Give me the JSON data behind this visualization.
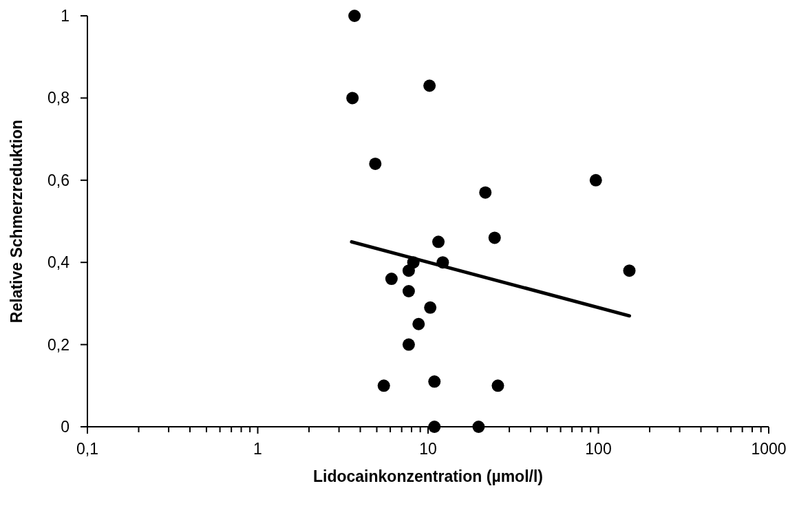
{
  "chart_data": {
    "type": "scatter",
    "xlabel": "Lidocainkonzentration (µmol/l)",
    "ylabel": "Relative Schmerzreduktion",
    "log": "x",
    "marker": "circle",
    "grid": false,
    "xlim": [
      0.1,
      1000
    ],
    "xticks": [
      {
        "value": 0.1,
        "label": "0,1"
      },
      {
        "value": 0.2,
        "label": null
      },
      {
        "value": 0.3,
        "label": null
      },
      {
        "value": 0.4,
        "label": null
      },
      {
        "value": 0.5,
        "label": null
      },
      {
        "value": 0.6,
        "label": null
      },
      {
        "value": 0.7,
        "label": null
      },
      {
        "value": 0.8,
        "label": null
      },
      {
        "value": 0.9,
        "label": null
      },
      {
        "value": 1,
        "label": "1"
      },
      {
        "value": 2,
        "label": null
      },
      {
        "value": 3,
        "label": null
      },
      {
        "value": 4,
        "label": null
      },
      {
        "value": 5,
        "label": null
      },
      {
        "value": 6,
        "label": null
      },
      {
        "value": 7,
        "label": null
      },
      {
        "value": 8,
        "label": null
      },
      {
        "value": 9,
        "label": null
      },
      {
        "value": 10,
        "label": "10"
      },
      {
        "value": 20,
        "label": null
      },
      {
        "value": 30,
        "label": null
      },
      {
        "value": 40,
        "label": null
      },
      {
        "value": 50,
        "label": null
      },
      {
        "value": 60,
        "label": null
      },
      {
        "value": 70,
        "label": null
      },
      {
        "value": 80,
        "label": null
      },
      {
        "value": 90,
        "label": null
      },
      {
        "value": 100,
        "label": "100"
      },
      {
        "value": 200,
        "label": null
      },
      {
        "value": 300,
        "label": null
      },
      {
        "value": 400,
        "label": null
      },
      {
        "value": 500,
        "label": null
      },
      {
        "value": 600,
        "label": null
      },
      {
        "value": 700,
        "label": null
      },
      {
        "value": 800,
        "label": null
      },
      {
        "value": 900,
        "label": null
      },
      {
        "value": 1000,
        "label": "1000"
      }
    ],
    "ylim": [
      0,
      1
    ],
    "yticks": [
      {
        "value": 0,
        "label": "0"
      },
      {
        "value": 0.2,
        "label": "0,2"
      },
      {
        "value": 0.4,
        "label": "0,4"
      },
      {
        "value": 0.6,
        "label": "0,6"
      },
      {
        "value": 0.8,
        "label": "0,8"
      },
      {
        "value": 1,
        "label": "1"
      }
    ],
    "series": [
      {
        "color": "#000000",
        "x": [
          3.7,
          3.6,
          10.2,
          4.9,
          21.7,
          96.6,
          11.5,
          24.6,
          8.2,
          12.2,
          7.7,
          6.1,
          7.7,
          10.3,
          8.8,
          7.7,
          5.5,
          10.9,
          25.7,
          10.9,
          19.8,
          152
        ],
        "values": [
          1,
          0.8,
          0.83,
          0.64,
          0.57,
          0.6,
          0.45,
          0.46,
          0.4,
          0.4,
          0.38,
          0.36,
          0.33,
          0.29,
          0.25,
          0.2,
          0.1,
          0.11,
          0.1,
          0,
          0,
          0.38
        ]
      },
      {
        "type": "line",
        "color": "#000000",
        "marker": "none",
        "x": [
          3.56,
          152
        ],
        "values": [
          0.45,
          0.27
        ]
      }
    ]
  }
}
